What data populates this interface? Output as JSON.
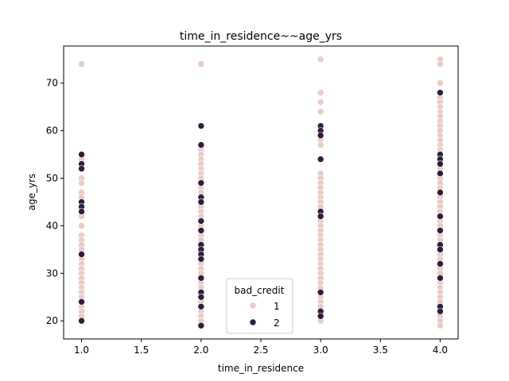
{
  "chart_data": {
    "type": "scatter",
    "title": "time_in_residence~~age_yrs",
    "xlabel": "time_in_residence",
    "ylabel": "age_yrs",
    "xlim": [
      0.85,
      4.15
    ],
    "ylim": [
      16.2,
      77.8
    ],
    "x_ticks": [
      "1.0",
      "1.5",
      "2.0",
      "2.5",
      "3.0",
      "3.5",
      "4.0"
    ],
    "x_tick_values": [
      1.0,
      1.5,
      2.0,
      2.5,
      3.0,
      3.5,
      4.0
    ],
    "y_ticks": [
      "20",
      "30",
      "40",
      "50",
      "60",
      "70"
    ],
    "y_tick_values": [
      20,
      30,
      40,
      50,
      60,
      70
    ],
    "grid": false,
    "legend": {
      "title": "bad_credit",
      "placement": "lower-center",
      "entries": [
        {
          "label": "1",
          "color": "#ebcbc6"
        },
        {
          "label": "2",
          "color": "#2d1e3e"
        }
      ]
    },
    "series": [
      {
        "name": "1",
        "color": "#ebcbc6",
        "points": [
          [
            1,
            74
          ],
          [
            1,
            53
          ],
          [
            1,
            50
          ],
          [
            1,
            49
          ],
          [
            1,
            47
          ],
          [
            1,
            46
          ],
          [
            1,
            42
          ],
          [
            1,
            40
          ],
          [
            1,
            38
          ],
          [
            1,
            37
          ],
          [
            1,
            36
          ],
          [
            1,
            35
          ],
          [
            1,
            33
          ],
          [
            1,
            32
          ],
          [
            1,
            31
          ],
          [
            1,
            30
          ],
          [
            1,
            29
          ],
          [
            1,
            28
          ],
          [
            1,
            27
          ],
          [
            1,
            26
          ],
          [
            1,
            25
          ],
          [
            1,
            23
          ],
          [
            1,
            22
          ],
          [
            1,
            21
          ],
          [
            1,
            54
          ],
          [
            2,
            74
          ],
          [
            2,
            56
          ],
          [
            2,
            55
          ],
          [
            2,
            54
          ],
          [
            2,
            53
          ],
          [
            2,
            52
          ],
          [
            2,
            51
          ],
          [
            2,
            50
          ],
          [
            2,
            48
          ],
          [
            2,
            47
          ],
          [
            2,
            46
          ],
          [
            2,
            44
          ],
          [
            2,
            43
          ],
          [
            2,
            42
          ],
          [
            2,
            40
          ],
          [
            2,
            38
          ],
          [
            2,
            37
          ],
          [
            2,
            36
          ],
          [
            2,
            34
          ],
          [
            2,
            32
          ],
          [
            2,
            31
          ],
          [
            2,
            30
          ],
          [
            2,
            29
          ],
          [
            2,
            28
          ],
          [
            2,
            27
          ],
          [
            2,
            24
          ],
          [
            2,
            22
          ],
          [
            2,
            21
          ],
          [
            2,
            20
          ],
          [
            3,
            75
          ],
          [
            3,
            68
          ],
          [
            3,
            66
          ],
          [
            3,
            64
          ],
          [
            3,
            58
          ],
          [
            3,
            57
          ],
          [
            3,
            51
          ],
          [
            3,
            50
          ],
          [
            3,
            49
          ],
          [
            3,
            48
          ],
          [
            3,
            47
          ],
          [
            3,
            46
          ],
          [
            3,
            45
          ],
          [
            3,
            44
          ],
          [
            3,
            41
          ],
          [
            3,
            40
          ],
          [
            3,
            39
          ],
          [
            3,
            38
          ],
          [
            3,
            37
          ],
          [
            3,
            36
          ],
          [
            3,
            35
          ],
          [
            3,
            34
          ],
          [
            3,
            33
          ],
          [
            3,
            32
          ],
          [
            3,
            31
          ],
          [
            3,
            30
          ],
          [
            3,
            29
          ],
          [
            3,
            28
          ],
          [
            3,
            27
          ],
          [
            3,
            25
          ],
          [
            3,
            24
          ],
          [
            3,
            23
          ],
          [
            3,
            20
          ],
          [
            4,
            75
          ],
          [
            4,
            74
          ],
          [
            4,
            70
          ],
          [
            4,
            67
          ],
          [
            4,
            66
          ],
          [
            4,
            65
          ],
          [
            4,
            64
          ],
          [
            4,
            63
          ],
          [
            4,
            62
          ],
          [
            4,
            61
          ],
          [
            4,
            60
          ],
          [
            4,
            59
          ],
          [
            4,
            58
          ],
          [
            4,
            57
          ],
          [
            4,
            56
          ],
          [
            4,
            52
          ],
          [
            4,
            50
          ],
          [
            4,
            49
          ],
          [
            4,
            48
          ],
          [
            4,
            46
          ],
          [
            4,
            45
          ],
          [
            4,
            44
          ],
          [
            4,
            43
          ],
          [
            4,
            41
          ],
          [
            4,
            40
          ],
          [
            4,
            38
          ],
          [
            4,
            37
          ],
          [
            4,
            34
          ],
          [
            4,
            33
          ],
          [
            4,
            31
          ],
          [
            4,
            30
          ],
          [
            4,
            28
          ],
          [
            4,
            27
          ],
          [
            4,
            26
          ],
          [
            4,
            25
          ],
          [
            4,
            24
          ],
          [
            4,
            21
          ],
          [
            4,
            20
          ],
          [
            4,
            19
          ]
        ]
      },
      {
        "name": "2",
        "color": "#2d1e3e",
        "points": [
          [
            1,
            55
          ],
          [
            1,
            53
          ],
          [
            1,
            52
          ],
          [
            1,
            45
          ],
          [
            1,
            44
          ],
          [
            1,
            43
          ],
          [
            1,
            34
          ],
          [
            1,
            24
          ],
          [
            1,
            20
          ],
          [
            2,
            61
          ],
          [
            2,
            57
          ],
          [
            2,
            49
          ],
          [
            2,
            46
          ],
          [
            2,
            45
          ],
          [
            2,
            41
          ],
          [
            2,
            39
          ],
          [
            2,
            36
          ],
          [
            2,
            35
          ],
          [
            2,
            34
          ],
          [
            2,
            33
          ],
          [
            2,
            29
          ],
          [
            2,
            26
          ],
          [
            2,
            25
          ],
          [
            2,
            23
          ],
          [
            2,
            19
          ],
          [
            3,
            61
          ],
          [
            3,
            60
          ],
          [
            3,
            59
          ],
          [
            3,
            54
          ],
          [
            3,
            43
          ],
          [
            3,
            42
          ],
          [
            3,
            26
          ],
          [
            3,
            22
          ],
          [
            3,
            21
          ],
          [
            4,
            68
          ],
          [
            4,
            55
          ],
          [
            4,
            54
          ],
          [
            4,
            53
          ],
          [
            4,
            51
          ],
          [
            4,
            47
          ],
          [
            4,
            42
          ],
          [
            4,
            39
          ],
          [
            4,
            36
          ],
          [
            4,
            35
          ],
          [
            4,
            32
          ],
          [
            4,
            29
          ],
          [
            4,
            23
          ],
          [
            4,
            22
          ]
        ]
      }
    ]
  }
}
